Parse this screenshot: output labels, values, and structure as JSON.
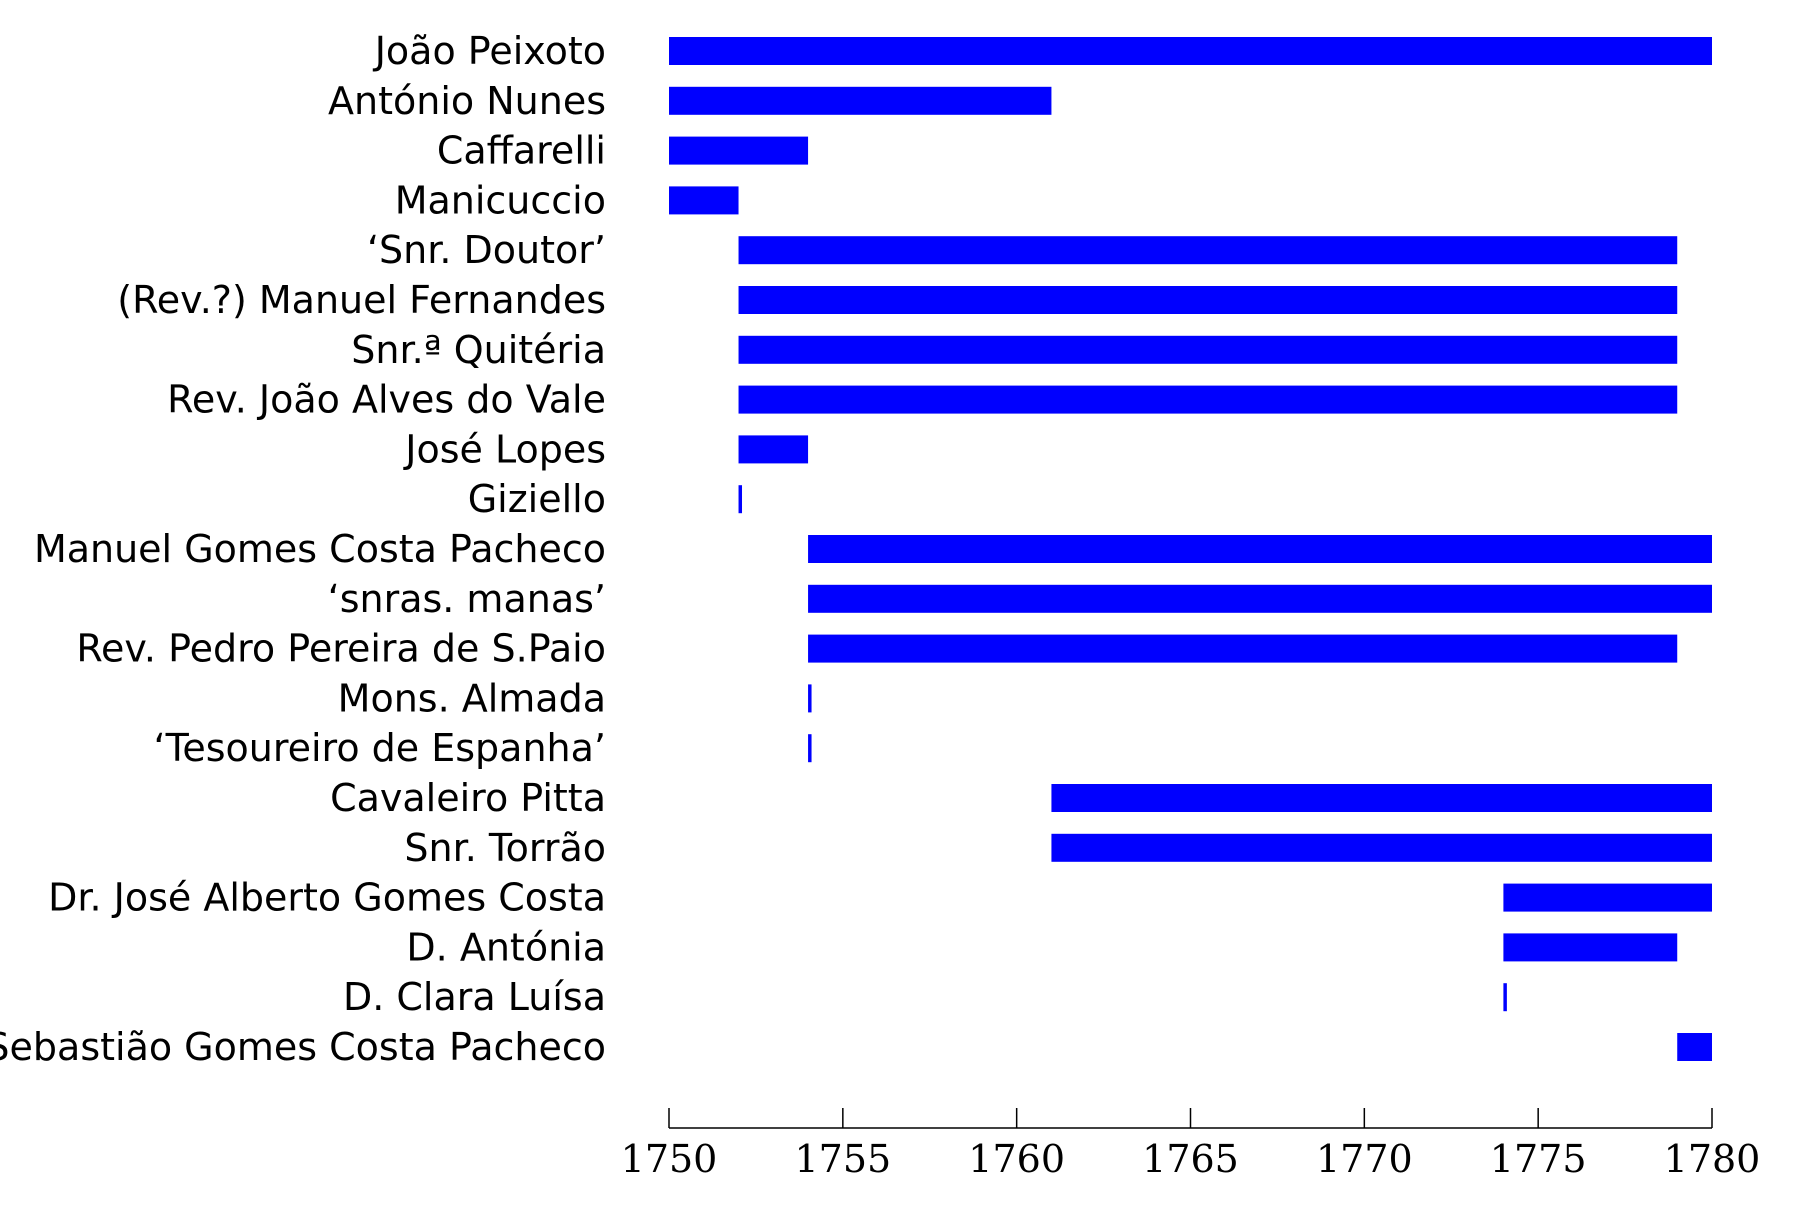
{
  "chart_data": {
    "type": "bar",
    "orientation": "horizontal-range",
    "title": "",
    "xlabel": "",
    "ylabel": "",
    "xlim": [
      1750,
      1780
    ],
    "xticks": [
      1750,
      1755,
      1760,
      1765,
      1770,
      1775,
      1780
    ],
    "grid": false,
    "bar_color": "#0000ff",
    "categories": [
      "João Peixoto",
      "António Nunes",
      "Caffarelli",
      "Manicuccio",
      "‘Snr. Doutor’",
      "(Rev.?) Manuel Fernandes",
      "Snr.ª Quitéria",
      "Rev. João Alves do Vale",
      "José Lopes",
      "Giziello",
      "Manuel Gomes Costa Pacheco",
      "‘snras. manas’",
      "Rev. Pedro Pereira de S.Paio",
      "Mons. Almada",
      "‘Tesoureiro de Espanha’",
      "Cavaleiro Pitta",
      "Snr. Torrão",
      "Dr. José Alberto Gomes Costa",
      "D. Antónia",
      "D. Clara Luísa",
      "Sebastião Gomes Costa Pacheco"
    ],
    "ranges": [
      [
        1750,
        1780
      ],
      [
        1750,
        1761
      ],
      [
        1750,
        1754
      ],
      [
        1750,
        1752
      ],
      [
        1752,
        1779
      ],
      [
        1752,
        1779
      ],
      [
        1752,
        1779
      ],
      [
        1752,
        1779
      ],
      [
        1752,
        1754
      ],
      [
        1752,
        1752.1
      ],
      [
        1754,
        1780
      ],
      [
        1754,
        1780
      ],
      [
        1754,
        1779
      ],
      [
        1754,
        1754.1
      ],
      [
        1754,
        1754.1
      ],
      [
        1761,
        1780
      ],
      [
        1761,
        1780
      ],
      [
        1774,
        1780
      ],
      [
        1774,
        1779
      ],
      [
        1774,
        1774.1
      ],
      [
        1779,
        1780
      ]
    ]
  }
}
